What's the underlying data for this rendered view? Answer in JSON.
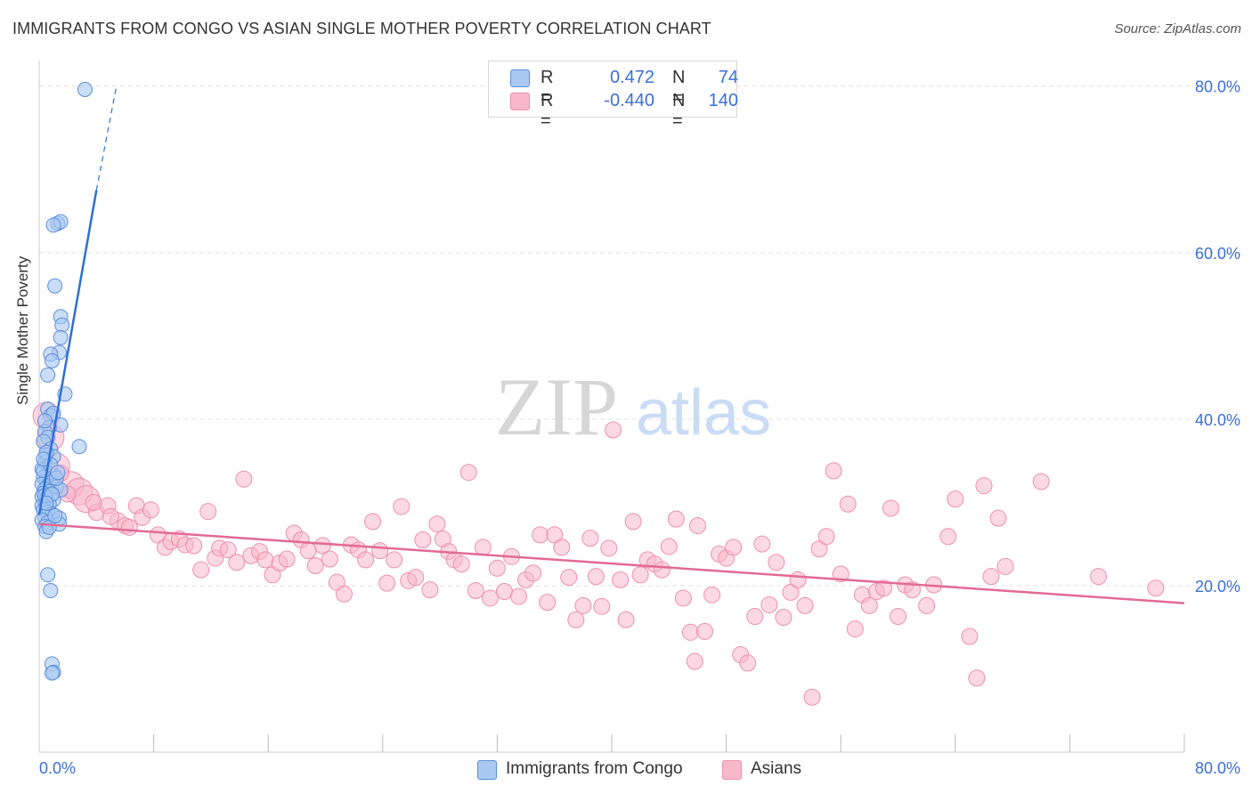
{
  "title": "IMMIGRANTS FROM CONGO VS ASIAN SINGLE MOTHER POVERTY CORRELATION CHART",
  "source": "Source: ZipAtlas.com",
  "watermark": {
    "zip": "ZIP",
    "atlas": "atlas"
  },
  "legend": {
    "rows": [
      {
        "r_label": "R =",
        "r_value": "0.472",
        "n_label": "N =",
        "n_value": "74"
      },
      {
        "r_label": "R =",
        "r_value": "-0.440",
        "n_label": "N =",
        "n_value": "140"
      }
    ]
  },
  "bottom_legend": [
    "Immigrants from Congo",
    "Asians"
  ],
  "colors": {
    "series1_fill": "#a9c8f2",
    "series1_stroke": "#5b8fdb",
    "series1_line": "#2f6fd6",
    "series2_fill": "#f7b8cc",
    "series2_stroke": "#ec8fae",
    "series2_line": "#e26a96",
    "axis_text": "#3a6fd8",
    "grid": "#e2e2e2"
  },
  "chart_data": {
    "type": "scatter",
    "title": "IMMIGRANTS FROM CONGO VS ASIAN SINGLE MOTHER POVERTY CORRELATION CHART",
    "xlabel": "",
    "ylabel": "Single Mother Poverty",
    "xlim": [
      0,
      80
    ],
    "ylim": [
      0,
      82
    ],
    "x_tick_labels": [
      "0.0%",
      "80.0%"
    ],
    "y_ticks": [
      20,
      40,
      60,
      80
    ],
    "y_tick_labels": [
      "20.0%",
      "40.0%",
      "60.0%",
      "80.0%"
    ],
    "grid": true,
    "series": [
      {
        "name": "Immigrants from Congo",
        "R": 0.472,
        "N": 74,
        "trend": {
          "x0": 0.0,
          "y0": 28.5,
          "x1": 4.0,
          "y1": 67.5,
          "dash_to_x": 5.4,
          "dash_to_y": 80.0
        },
        "points": [
          [
            3.2,
            79.6
          ],
          [
            1.3,
            63.5
          ],
          [
            1.5,
            63.7
          ],
          [
            1.0,
            63.3
          ],
          [
            1.1,
            56.0
          ],
          [
            1.5,
            52.3
          ],
          [
            1.6,
            51.3
          ],
          [
            1.5,
            49.8
          ],
          [
            1.4,
            48.0
          ],
          [
            0.8,
            47.8
          ],
          [
            0.9,
            47.0
          ],
          [
            0.6,
            45.3
          ],
          [
            1.8,
            43.0
          ],
          [
            0.6,
            41.2
          ],
          [
            0.8,
            40.4
          ],
          [
            1.0,
            40.7
          ],
          [
            1.5,
            39.3
          ],
          [
            0.7,
            39.0
          ],
          [
            0.4,
            38.5
          ],
          [
            0.6,
            37.8
          ],
          [
            0.3,
            37.3
          ],
          [
            2.8,
            36.7
          ],
          [
            0.8,
            36.4
          ],
          [
            0.5,
            35.7
          ],
          [
            1.0,
            35.5
          ],
          [
            0.4,
            34.8
          ],
          [
            0.2,
            34.0
          ],
          [
            0.6,
            33.5
          ],
          [
            1.1,
            33.2
          ],
          [
            0.3,
            33.0
          ],
          [
            0.5,
            32.6
          ],
          [
            0.8,
            32.4
          ],
          [
            0.2,
            32.2
          ],
          [
            0.6,
            32.0
          ],
          [
            1.2,
            31.8
          ],
          [
            0.4,
            31.6
          ],
          [
            1.5,
            31.5
          ],
          [
            0.7,
            31.3
          ],
          [
            0.3,
            31.1
          ],
          [
            0.9,
            30.9
          ],
          [
            0.2,
            30.7
          ],
          [
            0.5,
            30.5
          ],
          [
            1.0,
            30.3
          ],
          [
            0.4,
            30.1
          ],
          [
            0.7,
            29.8
          ],
          [
            0.2,
            29.6
          ],
          [
            0.5,
            29.3
          ],
          [
            0.3,
            29.1
          ],
          [
            0.6,
            28.8
          ],
          [
            0.9,
            28.6
          ],
          [
            0.4,
            28.3
          ],
          [
            1.4,
            28.1
          ],
          [
            0.2,
            27.9
          ],
          [
            0.6,
            27.6
          ],
          [
            1.4,
            27.4
          ],
          [
            0.4,
            27.1
          ],
          [
            0.5,
            26.5
          ],
          [
            0.3,
            33.8
          ],
          [
            0.8,
            34.5
          ],
          [
            1.2,
            32.9
          ],
          [
            0.4,
            30.8
          ],
          [
            0.7,
            27.0
          ],
          [
            1.1,
            28.4
          ],
          [
            0.6,
            21.3
          ],
          [
            0.8,
            19.4
          ],
          [
            0.9,
            10.6
          ],
          [
            1.0,
            9.6
          ],
          [
            0.9,
            9.5
          ],
          [
            0.5,
            36.0
          ],
          [
            0.3,
            35.2
          ],
          [
            0.9,
            31.0
          ],
          [
            0.5,
            29.9
          ],
          [
            1.3,
            33.6
          ],
          [
            0.4,
            39.8
          ]
        ]
      },
      {
        "name": "Asians",
        "R": -0.44,
        "N": 140,
        "trend": {
          "x0": 0.0,
          "y0": 27.4,
          "x1": 80.0,
          "y1": 17.9
        },
        "points": [
          [
            0.5,
            40.4
          ],
          [
            0.8,
            37.8
          ],
          [
            1.2,
            34.3
          ],
          [
            2.2,
            32.1
          ],
          [
            2.8,
            31.3
          ],
          [
            3.3,
            30.4
          ],
          [
            4.0,
            28.8
          ],
          [
            4.8,
            29.6
          ],
          [
            5.5,
            27.8
          ],
          [
            6.0,
            27.2
          ],
          [
            6.3,
            27.0
          ],
          [
            6.8,
            29.6
          ],
          [
            7.2,
            28.2
          ],
          [
            7.8,
            29.1
          ],
          [
            8.3,
            26.1
          ],
          [
            8.8,
            24.6
          ],
          [
            9.2,
            25.3
          ],
          [
            9.8,
            25.6
          ],
          [
            10.2,
            24.9
          ],
          [
            10.8,
            24.8
          ],
          [
            11.3,
            21.9
          ],
          [
            11.8,
            28.9
          ],
          [
            12.3,
            23.3
          ],
          [
            12.6,
            24.5
          ],
          [
            13.2,
            24.3
          ],
          [
            13.8,
            22.8
          ],
          [
            14.3,
            32.8
          ],
          [
            14.8,
            23.6
          ],
          [
            15.4,
            24.1
          ],
          [
            15.8,
            23.1
          ],
          [
            16.3,
            21.3
          ],
          [
            16.8,
            22.7
          ],
          [
            17.3,
            23.2
          ],
          [
            17.8,
            26.3
          ],
          [
            18.3,
            25.5
          ],
          [
            18.8,
            24.2
          ],
          [
            19.3,
            22.4
          ],
          [
            19.8,
            24.8
          ],
          [
            20.3,
            23.2
          ],
          [
            20.8,
            20.4
          ],
          [
            21.3,
            19.0
          ],
          [
            21.8,
            24.9
          ],
          [
            22.3,
            24.3
          ],
          [
            22.8,
            23.1
          ],
          [
            23.3,
            27.7
          ],
          [
            23.8,
            24.2
          ],
          [
            24.3,
            20.3
          ],
          [
            24.8,
            23.1
          ],
          [
            25.3,
            29.5
          ],
          [
            25.8,
            20.6
          ],
          [
            26.3,
            21.0
          ],
          [
            26.8,
            25.5
          ],
          [
            27.3,
            19.5
          ],
          [
            27.8,
            27.4
          ],
          [
            28.2,
            25.6
          ],
          [
            28.6,
            24.1
          ],
          [
            29.0,
            23.1
          ],
          [
            29.5,
            22.6
          ],
          [
            30.0,
            33.6
          ],
          [
            30.5,
            19.4
          ],
          [
            31.0,
            24.6
          ],
          [
            31.5,
            18.5
          ],
          [
            32.0,
            22.1
          ],
          [
            32.5,
            19.3
          ],
          [
            33.0,
            23.5
          ],
          [
            33.5,
            18.7
          ],
          [
            34.0,
            20.7
          ],
          [
            34.5,
            21.5
          ],
          [
            35.0,
            26.1
          ],
          [
            35.5,
            18.0
          ],
          [
            36.0,
            26.1
          ],
          [
            36.5,
            24.6
          ],
          [
            37.0,
            21.0
          ],
          [
            37.5,
            15.9
          ],
          [
            38.0,
            17.6
          ],
          [
            38.5,
            25.7
          ],
          [
            38.9,
            21.1
          ],
          [
            39.3,
            17.5
          ],
          [
            39.8,
            24.5
          ],
          [
            40.1,
            38.7
          ],
          [
            40.6,
            20.7
          ],
          [
            41.0,
            15.9
          ],
          [
            41.5,
            27.7
          ],
          [
            42.0,
            21.3
          ],
          [
            42.5,
            23.1
          ],
          [
            43.0,
            22.6
          ],
          [
            43.5,
            21.9
          ],
          [
            44.0,
            24.7
          ],
          [
            44.5,
            28.0
          ],
          [
            45.0,
            18.5
          ],
          [
            45.5,
            14.4
          ],
          [
            45.8,
            10.9
          ],
          [
            46.0,
            27.2
          ],
          [
            46.5,
            14.5
          ],
          [
            47.0,
            18.9
          ],
          [
            47.5,
            23.8
          ],
          [
            48.0,
            23.3
          ],
          [
            48.5,
            24.6
          ],
          [
            49.0,
            11.7
          ],
          [
            49.5,
            10.7
          ],
          [
            50.0,
            16.3
          ],
          [
            50.5,
            25.0
          ],
          [
            51.0,
            17.7
          ],
          [
            51.5,
            22.8
          ],
          [
            52.0,
            16.2
          ],
          [
            52.5,
            19.2
          ],
          [
            53.0,
            20.7
          ],
          [
            53.5,
            17.6
          ],
          [
            54.0,
            6.6
          ],
          [
            54.5,
            24.4
          ],
          [
            55.0,
            25.9
          ],
          [
            55.5,
            33.8
          ],
          [
            56.0,
            21.4
          ],
          [
            56.5,
            29.8
          ],
          [
            57.0,
            14.8
          ],
          [
            57.5,
            18.9
          ],
          [
            58.0,
            17.6
          ],
          [
            58.5,
            19.3
          ],
          [
            59.0,
            19.7
          ],
          [
            59.5,
            29.3
          ],
          [
            60.0,
            16.3
          ],
          [
            60.5,
            20.1
          ],
          [
            61.0,
            19.5
          ],
          [
            62.0,
            17.6
          ],
          [
            62.5,
            20.1
          ],
          [
            63.5,
            25.9
          ],
          [
            64.0,
            30.4
          ],
          [
            65.0,
            13.9
          ],
          [
            65.5,
            8.9
          ],
          [
            66.0,
            32.0
          ],
          [
            66.5,
            21.1
          ],
          [
            67.0,
            28.1
          ],
          [
            67.5,
            22.3
          ],
          [
            70.0,
            32.5
          ],
          [
            74.0,
            21.1
          ],
          [
            78.0,
            19.7
          ],
          [
            2.0,
            31.0
          ],
          [
            3.8,
            30.0
          ],
          [
            1.5,
            33.5
          ],
          [
            5.0,
            28.3
          ]
        ]
      }
    ]
  }
}
